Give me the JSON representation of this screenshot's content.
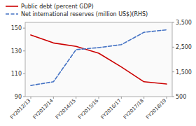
{
  "chart_data": {
    "type": "line",
    "categories": [
      "FY2012/13",
      "FY2013/14",
      "FY2014/15",
      "FY2015/16",
      "FY2016/17",
      "FY2017/18",
      "FY2018/19"
    ],
    "series": [
      {
        "name": "Public debt (percent GDP)",
        "color": "#cc0000",
        "line_style": "solid",
        "values": [
          144,
          137,
          134,
          128,
          116,
          103,
          101
        ]
      },
      {
        "name": "Net international reserves (million US$)(RHS)",
        "color": "#4472c4",
        "line_style": "dashed",
        "axis": "y2",
        "values": [
          950,
          1100,
          2400,
          2480,
          2600,
          3100,
          3200
        ]
      }
    ],
    "ylim": [
      90,
      155
    ],
    "yticks": [
      90,
      110,
      130,
      150
    ],
    "y2lim": [
      500,
      3500
    ],
    "y2ticks": [
      500,
      {
        "value": 1500,
        "label": "1,500"
      },
      {
        "value": 2500,
        "label": "2,500"
      },
      {
        "value": 3500,
        "label": "3,500"
      }
    ],
    "grid": false,
    "legend": "top"
  }
}
